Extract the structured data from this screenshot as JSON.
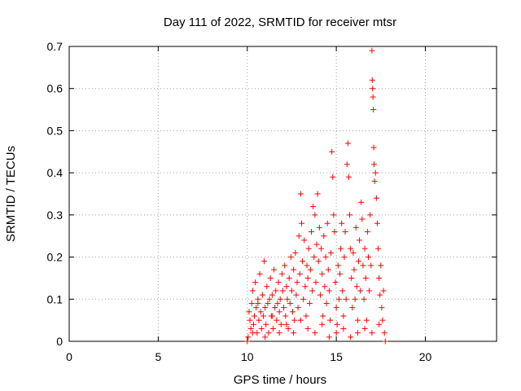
{
  "chart_data": {
    "type": "scatter",
    "title": "Day 111 of 2022, SRMTID for receiver mtsr",
    "xlabel": "GPS time / hours",
    "ylabel": "SRMTID / TECUs",
    "xlim": [
      0,
      24
    ],
    "ylim": [
      0,
      0.7
    ],
    "xticks": [
      0,
      5,
      10,
      15,
      20
    ],
    "xtick_labels": [
      "0",
      "5",
      "10",
      "15",
      "20"
    ],
    "yticks": [
      0,
      0.1,
      0.2,
      0.3,
      0.4,
      0.5,
      0.6,
      0.7
    ],
    "ytick_labels": [
      "0",
      "0.1",
      "0.2",
      "0.3",
      "0.4",
      "0.5",
      "0.6",
      "0.7"
    ],
    "grid": true,
    "marker": "+",
    "color": "#ff0000",
    "series": [
      {
        "name": "SRMTID",
        "points": [
          [
            10.0,
            0.0
          ],
          [
            10.05,
            0.01
          ],
          [
            10.1,
            0.07
          ],
          [
            10.15,
            0.05
          ],
          [
            10.2,
            0.03
          ],
          [
            10.25,
            0.09
          ],
          [
            10.3,
            0.12
          ],
          [
            10.35,
            0.04
          ],
          [
            10.4,
            0.06
          ],
          [
            10.45,
            0.14
          ],
          [
            10.5,
            0.08
          ],
          [
            10.55,
            0.02
          ],
          [
            10.6,
            0.1
          ],
          [
            10.65,
            0.05
          ],
          [
            10.7,
            0.16
          ],
          [
            10.75,
            0.07
          ],
          [
            10.8,
            0.03
          ],
          [
            10.85,
            0.11
          ],
          [
            10.9,
            0.06
          ],
          [
            10.95,
            0.19
          ],
          [
            11.0,
            0.08
          ],
          [
            11.05,
            0.04
          ],
          [
            11.1,
            0.13
          ],
          [
            11.15,
            0.09
          ],
          [
            11.2,
            0.02
          ],
          [
            11.25,
            0.1
          ],
          [
            11.3,
            0.15
          ],
          [
            11.35,
            0.06
          ],
          [
            11.4,
            0.11
          ],
          [
            11.45,
            0.03
          ],
          [
            11.5,
            0.17
          ],
          [
            11.55,
            0.08
          ],
          [
            11.6,
            0.12
          ],
          [
            11.65,
            0.05
          ],
          [
            11.7,
            0.09
          ],
          [
            11.75,
            0.14
          ],
          [
            11.8,
            0.07
          ],
          [
            11.85,
            0.1
          ],
          [
            11.9,
            0.04
          ],
          [
            11.95,
            0.16
          ],
          [
            12.0,
            0.12
          ],
          [
            12.05,
            0.08
          ],
          [
            12.1,
            0.18
          ],
          [
            12.15,
            0.06
          ],
          [
            12.2,
            0.13
          ],
          [
            12.25,
            0.1
          ],
          [
            12.3,
            0.03
          ],
          [
            12.35,
            0.15
          ],
          [
            12.4,
            0.09
          ],
          [
            12.45,
            0.2
          ],
          [
            12.5,
            0.12
          ],
          [
            12.55,
            0.07
          ],
          [
            12.6,
            0.17
          ],
          [
            12.65,
            0.05
          ],
          [
            12.7,
            0.21
          ],
          [
            12.75,
            0.11
          ],
          [
            12.8,
            0.14
          ],
          [
            12.85,
            0.08
          ],
          [
            12.9,
            0.25
          ],
          [
            12.95,
            0.16
          ],
          [
            13.0,
            0.35
          ],
          [
            13.05,
            0.28
          ],
          [
            13.1,
            0.19
          ],
          [
            13.15,
            0.1
          ],
          [
            13.2,
            0.24
          ],
          [
            13.25,
            0.13
          ],
          [
            13.3,
            0.06
          ],
          [
            13.35,
            0.18
          ],
          [
            13.4,
            0.15
          ],
          [
            13.45,
            0.22
          ],
          [
            13.5,
            0.09
          ],
          [
            13.55,
            0.17
          ],
          [
            13.6,
            0.26
          ],
          [
            13.65,
            0.12
          ],
          [
            13.7,
            0.32
          ],
          [
            13.75,
            0.2
          ],
          [
            13.8,
            0.3
          ],
          [
            13.85,
            0.14
          ],
          [
            13.9,
            0.23
          ],
          [
            13.95,
            0.35
          ],
          [
            14.0,
            0.19
          ],
          [
            14.05,
            0.27
          ],
          [
            14.1,
            0.11
          ],
          [
            14.15,
            0.22
          ],
          [
            14.2,
            0.16
          ],
          [
            14.25,
            0.06
          ],
          [
            14.3,
            0.25
          ],
          [
            14.35,
            0.13
          ],
          [
            14.4,
            0.2
          ],
          [
            14.45,
            0.09
          ],
          [
            14.5,
            0.28
          ],
          [
            14.55,
            0.17
          ],
          [
            14.6,
            0.12
          ],
          [
            14.65,
            0.05
          ],
          [
            14.7,
            0.21
          ],
          [
            14.75,
            0.45
          ],
          [
            14.8,
            0.39
          ],
          [
            14.85,
            0.3
          ],
          [
            14.9,
            0.26
          ],
          [
            14.95,
            0.14
          ],
          [
            15.0,
            0.08
          ],
          [
            15.05,
            0.04
          ],
          [
            15.1,
            0.18
          ],
          [
            15.15,
            0.1
          ],
          [
            15.2,
            0.16
          ],
          [
            15.25,
            0.22
          ],
          [
            15.3,
            0.28
          ],
          [
            15.35,
            0.12
          ],
          [
            15.4,
            0.06
          ],
          [
            15.45,
            0.2
          ],
          [
            15.5,
            0.26
          ],
          [
            15.55,
            0.1
          ],
          [
            15.6,
            0.42
          ],
          [
            15.65,
            0.47
          ],
          [
            15.7,
            0.39
          ],
          [
            15.75,
            0.3
          ],
          [
            15.8,
            0.22
          ],
          [
            15.85,
            0.15
          ],
          [
            15.9,
            0.08
          ],
          [
            15.95,
            0.21
          ],
          [
            16.0,
            0.17
          ],
          [
            16.05,
            0.1
          ],
          [
            16.1,
            0.27
          ],
          [
            16.15,
            0.13
          ],
          [
            16.2,
            0.05
          ],
          [
            16.25,
            0.19
          ],
          [
            16.3,
            0.24
          ],
          [
            16.35,
            0.12
          ],
          [
            16.4,
            0.33
          ],
          [
            16.45,
            0.29
          ],
          [
            16.5,
            0.18
          ],
          [
            16.55,
            0.1
          ],
          [
            16.6,
            0.22
          ],
          [
            16.65,
            0.15
          ],
          [
            16.7,
            0.05
          ],
          [
            16.75,
            0.26
          ],
          [
            16.8,
            0.2
          ],
          [
            16.85,
            0.12
          ],
          [
            16.9,
            0.3
          ],
          [
            16.95,
            0.18
          ],
          [
            17.0,
            0.69
          ],
          [
            17.02,
            0.62
          ],
          [
            17.04,
            0.6
          ],
          [
            17.06,
            0.58
          ],
          [
            17.08,
            0.55
          ],
          [
            17.1,
            0.46
          ],
          [
            17.12,
            0.42
          ],
          [
            17.15,
            0.38
          ],
          [
            17.2,
            0.4
          ],
          [
            17.25,
            0.34
          ],
          [
            17.3,
            0.28
          ],
          [
            17.35,
            0.22
          ],
          [
            17.4,
            0.15
          ],
          [
            17.45,
            0.11
          ],
          [
            17.5,
            0.18
          ],
          [
            17.55,
            0.08
          ],
          [
            17.6,
            0.05
          ],
          [
            17.65,
            0.12
          ],
          [
            17.7,
            0.02
          ],
          [
            17.75,
            0.0
          ],
          [
            10.3,
            0.02
          ],
          [
            10.6,
            0.09
          ],
          [
            11.0,
            0.01
          ],
          [
            11.4,
            0.06
          ],
          [
            11.8,
            0.02
          ],
          [
            12.2,
            0.04
          ],
          [
            12.6,
            0.02
          ],
          [
            13.0,
            0.05
          ],
          [
            13.4,
            0.03
          ],
          [
            13.8,
            0.02
          ],
          [
            14.2,
            0.04
          ],
          [
            14.6,
            0.01
          ],
          [
            15.0,
            0.02
          ],
          [
            15.4,
            0.03
          ],
          [
            15.8,
            0.01
          ],
          [
            16.2,
            0.02
          ],
          [
            16.6,
            0.03
          ],
          [
            17.0,
            0.02
          ],
          [
            17.4,
            0.04
          ]
        ]
      }
    ]
  }
}
